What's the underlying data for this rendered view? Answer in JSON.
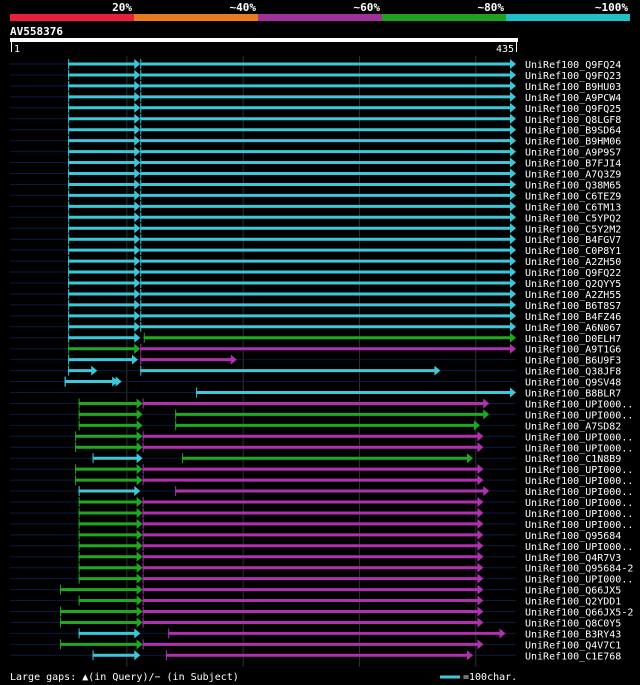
{
  "legend_scale": {
    "labels": [
      "20%",
      "~40%",
      "~60%",
      "~80%",
      "~100%"
    ],
    "colors": [
      "#e8203a",
      "#e87a20",
      "#a0309a",
      "#20a020",
      "#20c0c8"
    ]
  },
  "query": {
    "name": "AV558376",
    "start_label": "1",
    "end_label": "435",
    "length": 435
  },
  "footer": {
    "gaps_text": "Large gaps: ▲(in Query)/− (in Subject)",
    "scale_text": "=100char."
  },
  "colors": {
    "cyan": "#3cc8d8",
    "green": "#20a820",
    "magenta": "#b030b0",
    "grid": "#303030",
    "guide": "#0a1a44"
  },
  "chart_data": {
    "type": "alignment-map",
    "x_units": "query position",
    "xlim": [
      0,
      435
    ],
    "hits": [
      {
        "name": "UniRef100_Q9FQ24",
        "segs": [
          [
            50,
            112,
            "cyan"
          ],
          [
            112,
            435,
            "cyan"
          ]
        ]
      },
      {
        "name": "UniRef100_Q9FQ23",
        "segs": [
          [
            50,
            112,
            "cyan"
          ],
          [
            112,
            435,
            "cyan"
          ]
        ]
      },
      {
        "name": "UniRef100_B9HU03",
        "segs": [
          [
            50,
            112,
            "cyan"
          ],
          [
            112,
            435,
            "cyan"
          ]
        ]
      },
      {
        "name": "UniRef100_A9PCW4",
        "segs": [
          [
            50,
            112,
            "cyan"
          ],
          [
            112,
            435,
            "cyan"
          ]
        ]
      },
      {
        "name": "UniRef100_Q9FQ25",
        "segs": [
          [
            50,
            112,
            "cyan"
          ],
          [
            112,
            435,
            "cyan"
          ]
        ]
      },
      {
        "name": "UniRef100_Q8LGF8",
        "segs": [
          [
            50,
            112,
            "cyan"
          ],
          [
            112,
            435,
            "cyan"
          ]
        ]
      },
      {
        "name": "UniRef100_B9SD64",
        "segs": [
          [
            50,
            112,
            "cyan"
          ],
          [
            112,
            435,
            "cyan"
          ]
        ]
      },
      {
        "name": "UniRef100_B9HM06",
        "segs": [
          [
            50,
            112,
            "cyan"
          ],
          [
            112,
            435,
            "cyan"
          ]
        ]
      },
      {
        "name": "UniRef100_A9P9S7",
        "segs": [
          [
            50,
            112,
            "cyan"
          ],
          [
            112,
            435,
            "cyan"
          ]
        ]
      },
      {
        "name": "UniRef100_B7FJI4",
        "segs": [
          [
            50,
            112,
            "cyan"
          ],
          [
            112,
            435,
            "cyan"
          ]
        ]
      },
      {
        "name": "UniRef100_A7Q3Z9",
        "segs": [
          [
            50,
            112,
            "cyan"
          ],
          [
            112,
            435,
            "cyan"
          ]
        ]
      },
      {
        "name": "UniRef100_Q38M65",
        "segs": [
          [
            50,
            112,
            "cyan"
          ],
          [
            112,
            435,
            "cyan"
          ]
        ]
      },
      {
        "name": "UniRef100_C6TEZ9",
        "segs": [
          [
            50,
            112,
            "cyan"
          ],
          [
            112,
            435,
            "cyan"
          ]
        ]
      },
      {
        "name": "UniRef100_C6TM13",
        "segs": [
          [
            50,
            112,
            "cyan"
          ],
          [
            112,
            435,
            "cyan"
          ]
        ]
      },
      {
        "name": "UniRef100_C5YPQ2",
        "segs": [
          [
            50,
            112,
            "cyan"
          ],
          [
            112,
            435,
            "cyan"
          ]
        ]
      },
      {
        "name": "UniRef100_C5Y2M2",
        "segs": [
          [
            50,
            112,
            "cyan"
          ],
          [
            112,
            435,
            "cyan"
          ]
        ]
      },
      {
        "name": "UniRef100_B4FGV7",
        "segs": [
          [
            50,
            112,
            "cyan"
          ],
          [
            112,
            435,
            "cyan"
          ]
        ]
      },
      {
        "name": "UniRef100_C0P8Y1",
        "segs": [
          [
            50,
            112,
            "cyan"
          ],
          [
            112,
            435,
            "cyan"
          ]
        ]
      },
      {
        "name": "UniRef100_A2ZH50",
        "segs": [
          [
            50,
            112,
            "cyan"
          ],
          [
            112,
            435,
            "cyan"
          ]
        ]
      },
      {
        "name": "UniRef100_Q9FQ22",
        "segs": [
          [
            50,
            112,
            "cyan"
          ],
          [
            112,
            435,
            "cyan"
          ]
        ]
      },
      {
        "name": "UniRef100_Q2QYY5",
        "segs": [
          [
            50,
            112,
            "cyan"
          ],
          [
            112,
            435,
            "cyan"
          ]
        ]
      },
      {
        "name": "UniRef100_A2ZH55",
        "segs": [
          [
            50,
            112,
            "cyan"
          ],
          [
            112,
            435,
            "cyan"
          ]
        ]
      },
      {
        "name": "UniRef100_B6T8S7",
        "segs": [
          [
            50,
            112,
            "cyan"
          ],
          [
            112,
            435,
            "cyan"
          ]
        ]
      },
      {
        "name": "UniRef100_B4FZ46",
        "segs": [
          [
            50,
            112,
            "cyan"
          ],
          [
            112,
            435,
            "cyan"
          ]
        ]
      },
      {
        "name": "UniRef100_A6N067",
        "segs": [
          [
            50,
            112,
            "cyan"
          ],
          [
            112,
            435,
            "cyan"
          ]
        ]
      },
      {
        "name": "UniRef100_D0ELH7",
        "segs": [
          [
            50,
            112,
            "cyan"
          ],
          [
            115,
            435,
            "green"
          ]
        ]
      },
      {
        "name": "UniRef100_A9T1G6",
        "segs": [
          [
            50,
            112,
            "green"
          ],
          [
            112,
            435,
            "magenta"
          ]
        ]
      },
      {
        "name": "UniRef100_B6U9F3",
        "segs": [
          [
            50,
            110,
            "cyan"
          ],
          [
            112,
            195,
            "magenta"
          ]
        ]
      },
      {
        "name": "UniRef100_Q38JF8",
        "segs": [
          [
            50,
            75,
            "cyan"
          ],
          [
            112,
            370,
            "cyan"
          ]
        ]
      },
      {
        "name": "UniRef100_Q9SV48",
        "segs": [
          [
            47,
            93,
            "cyan"
          ],
          [
            47,
            96,
            "cyan"
          ]
        ]
      },
      {
        "name": "UniRef100_B8BLR7",
        "segs": [
          [
            160,
            435,
            "cyan"
          ]
        ]
      },
      {
        "name": "UniRef100_UPI000..",
        "segs": [
          [
            59,
            114,
            "green"
          ],
          [
            114,
            412,
            "magenta"
          ]
        ]
      },
      {
        "name": "UniRef100_UPI000..",
        "segs": [
          [
            59,
            114,
            "green"
          ],
          [
            142,
            412,
            "green"
          ]
        ]
      },
      {
        "name": "UniRef100_A7SD82",
        "segs": [
          [
            59,
            114,
            "green"
          ],
          [
            142,
            404,
            "green"
          ]
        ]
      },
      {
        "name": "UniRef100_UPI000..",
        "segs": [
          [
            56,
            114,
            "green"
          ],
          [
            114,
            407,
            "magenta"
          ]
        ]
      },
      {
        "name": "UniRef100_UPI000..",
        "segs": [
          [
            56,
            114,
            "green"
          ],
          [
            114,
            407,
            "magenta"
          ]
        ]
      },
      {
        "name": "UniRef100_C1N8B9",
        "segs": [
          [
            71,
            114,
            "cyan"
          ],
          [
            148,
            398,
            "green"
          ]
        ]
      },
      {
        "name": "UniRef100_UPI000..",
        "segs": [
          [
            56,
            114,
            "green"
          ],
          [
            114,
            407,
            "magenta"
          ]
        ]
      },
      {
        "name": "UniRef100_UPI000..",
        "segs": [
          [
            56,
            114,
            "green"
          ],
          [
            114,
            407,
            "magenta"
          ]
        ]
      },
      {
        "name": "UniRef100_UPI000..",
        "segs": [
          [
            59,
            112,
            "cyan"
          ],
          [
            142,
            412,
            "magenta"
          ]
        ]
      },
      {
        "name": "UniRef100_UPI000..",
        "segs": [
          [
            59,
            114,
            "green"
          ],
          [
            114,
            407,
            "magenta"
          ]
        ]
      },
      {
        "name": "UniRef100_UPI000..",
        "segs": [
          [
            59,
            114,
            "green"
          ],
          [
            114,
            407,
            "magenta"
          ]
        ]
      },
      {
        "name": "UniRef100_UPI000..",
        "segs": [
          [
            59,
            114,
            "green"
          ],
          [
            114,
            407,
            "magenta"
          ]
        ]
      },
      {
        "name": "UniRef100_Q95684",
        "segs": [
          [
            59,
            114,
            "green"
          ],
          [
            114,
            407,
            "magenta"
          ]
        ]
      },
      {
        "name": "UniRef100_UPI000..",
        "segs": [
          [
            59,
            114,
            "green"
          ],
          [
            114,
            407,
            "magenta"
          ]
        ]
      },
      {
        "name": "UniRef100_Q4R7V3",
        "segs": [
          [
            59,
            114,
            "green"
          ],
          [
            114,
            407,
            "magenta"
          ]
        ]
      },
      {
        "name": "UniRef100_Q95684-2",
        "segs": [
          [
            59,
            114,
            "green"
          ],
          [
            114,
            407,
            "magenta"
          ]
        ]
      },
      {
        "name": "UniRef100_UPI000..",
        "segs": [
          [
            59,
            114,
            "green"
          ],
          [
            114,
            407,
            "magenta"
          ]
        ]
      },
      {
        "name": "UniRef100_Q66JX5",
        "segs": [
          [
            43,
            114,
            "green"
          ],
          [
            114,
            407,
            "magenta"
          ]
        ]
      },
      {
        "name": "UniRef100_Q2YDD1",
        "segs": [
          [
            59,
            114,
            "green"
          ],
          [
            114,
            407,
            "magenta"
          ]
        ]
      },
      {
        "name": "UniRef100_Q66JX5-2",
        "segs": [
          [
            43,
            114,
            "green"
          ],
          [
            114,
            407,
            "magenta"
          ]
        ]
      },
      {
        "name": "UniRef100_Q8C0Y5",
        "segs": [
          [
            43,
            114,
            "green"
          ],
          [
            114,
            407,
            "magenta"
          ]
        ]
      },
      {
        "name": "UniRef100_B3RY43",
        "segs": [
          [
            59,
            112,
            "cyan"
          ],
          [
            136,
            426,
            "magenta"
          ]
        ]
      },
      {
        "name": "UniRef100_Q4V7C1",
        "segs": [
          [
            43,
            114,
            "green"
          ],
          [
            114,
            407,
            "magenta"
          ]
        ]
      },
      {
        "name": "UniRef100_C1E768",
        "segs": [
          [
            71,
            112,
            "cyan"
          ],
          [
            134,
            398,
            "magenta"
          ]
        ]
      }
    ]
  }
}
